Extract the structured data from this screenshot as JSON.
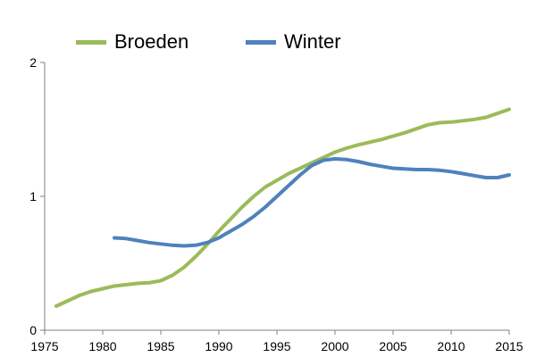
{
  "chart_data": {
    "type": "line",
    "title": "",
    "xlabel": "",
    "ylabel": "",
    "xlim": [
      1975,
      2015
    ],
    "ylim": [
      0,
      2
    ],
    "x_ticks": [
      1975,
      1980,
      1985,
      1990,
      1995,
      2000,
      2005,
      2010,
      2015
    ],
    "y_ticks": [
      0,
      1,
      2
    ],
    "grid": false,
    "legend_position": "top",
    "series": [
      {
        "name": "Broeden",
        "color": "#9BBB59",
        "x": [
          1976,
          1977,
          1978,
          1979,
          1980,
          1981,
          1982,
          1983,
          1984,
          1985,
          1986,
          1987,
          1988,
          1989,
          1990,
          1991,
          1992,
          1993,
          1994,
          1995,
          1996,
          1997,
          1998,
          1999,
          2000,
          2001,
          2002,
          2003,
          2004,
          2005,
          2006,
          2007,
          2008,
          2009,
          2010,
          2011,
          2012,
          2013,
          2014,
          2015
        ],
        "values": [
          0.18,
          0.22,
          0.26,
          0.29,
          0.31,
          0.33,
          0.34,
          0.35,
          0.355,
          0.37,
          0.41,
          0.47,
          0.55,
          0.64,
          0.74,
          0.83,
          0.92,
          1.0,
          1.07,
          1.12,
          1.17,
          1.21,
          1.25,
          1.29,
          1.33,
          1.36,
          1.385,
          1.405,
          1.425,
          1.45,
          1.475,
          1.505,
          1.535,
          1.55,
          1.555,
          1.565,
          1.575,
          1.59,
          1.62,
          1.65
        ]
      },
      {
        "name": "Winter",
        "color": "#4F81BD",
        "x": [
          1981,
          1982,
          1983,
          1984,
          1985,
          1986,
          1987,
          1988,
          1989,
          1990,
          1991,
          1992,
          1993,
          1994,
          1995,
          1996,
          1997,
          1998,
          1999,
          2000,
          2001,
          2002,
          2003,
          2004,
          2005,
          2006,
          2007,
          2008,
          2009,
          2010,
          2011,
          2012,
          2013,
          2014,
          2015
        ],
        "values": [
          0.69,
          0.685,
          0.67,
          0.655,
          0.645,
          0.635,
          0.63,
          0.635,
          0.655,
          0.69,
          0.74,
          0.79,
          0.85,
          0.92,
          1.0,
          1.08,
          1.16,
          1.23,
          1.27,
          1.28,
          1.275,
          1.26,
          1.24,
          1.225,
          1.21,
          1.205,
          1.2,
          1.2,
          1.195,
          1.185,
          1.17,
          1.155,
          1.14,
          1.14,
          1.16
        ]
      }
    ]
  }
}
